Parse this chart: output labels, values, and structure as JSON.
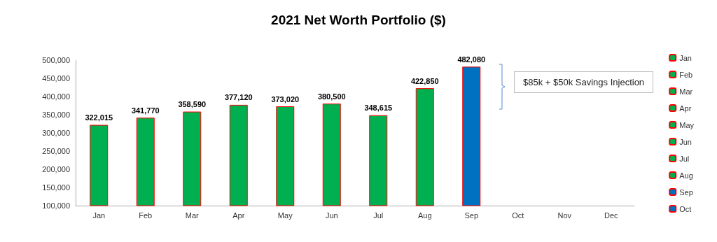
{
  "chart_data": {
    "type": "bar",
    "title": "2021 Net Worth Portfolio ($)",
    "categories": [
      "Jan",
      "Feb",
      "Mar",
      "Apr",
      "May",
      "Jun",
      "Jul",
      "Aug",
      "Sep",
      "Oct",
      "Nov",
      "Dec"
    ],
    "stacked": true,
    "series": [
      {
        "name": "Jan",
        "color": "#00b050",
        "values": [
          322015,
          null,
          null,
          null,
          null,
          null,
          null,
          null,
          null,
          null,
          null,
          null
        ],
        "value_labels": [
          "322,015",
          null,
          null,
          null,
          null,
          null,
          null,
          null,
          null,
          null,
          null,
          null
        ]
      },
      {
        "name": "Feb",
        "color": "#00b050",
        "values": [
          null,
          341770,
          null,
          null,
          null,
          null,
          null,
          null,
          null,
          null,
          null,
          null
        ],
        "value_labels": [
          null,
          "341,770",
          null,
          null,
          null,
          null,
          null,
          null,
          null,
          null,
          null,
          null
        ]
      },
      {
        "name": "Mar",
        "color": "#00b050",
        "values": [
          null,
          null,
          358590,
          null,
          null,
          null,
          null,
          null,
          null,
          null,
          null,
          null
        ],
        "value_labels": [
          null,
          null,
          "358,590",
          null,
          null,
          null,
          null,
          null,
          null,
          null,
          null,
          null
        ]
      },
      {
        "name": "Apr",
        "color": "#00b050",
        "values": [
          null,
          null,
          null,
          377120,
          null,
          null,
          null,
          null,
          null,
          null,
          null,
          null
        ],
        "value_labels": [
          null,
          null,
          null,
          "377,120",
          null,
          null,
          null,
          null,
          null,
          null,
          null,
          null
        ]
      },
      {
        "name": "May",
        "color": "#00b050",
        "values": [
          null,
          null,
          null,
          null,
          373020,
          null,
          null,
          null,
          null,
          null,
          null,
          null
        ],
        "value_labels": [
          null,
          null,
          null,
          null,
          "373,020",
          null,
          null,
          null,
          null,
          null,
          null,
          null
        ]
      },
      {
        "name": "Jun",
        "color": "#00b050",
        "values": [
          null,
          null,
          null,
          null,
          null,
          380500,
          null,
          null,
          null,
          null,
          null,
          null
        ],
        "value_labels": [
          null,
          null,
          null,
          null,
          null,
          "380,500",
          null,
          null,
          null,
          null,
          null,
          null
        ]
      },
      {
        "name": "Jul",
        "color": "#00b050",
        "values": [
          null,
          null,
          null,
          null,
          null,
          null,
          348615,
          null,
          null,
          null,
          null,
          null
        ],
        "value_labels": [
          null,
          null,
          null,
          null,
          null,
          null,
          "348,615",
          null,
          null,
          null,
          null,
          null
        ]
      },
      {
        "name": "Aug",
        "color": "#00b050",
        "values": [
          null,
          null,
          null,
          null,
          null,
          null,
          null,
          422850,
          null,
          null,
          null,
          null
        ],
        "value_labels": [
          null,
          null,
          null,
          null,
          null,
          null,
          null,
          "422,850",
          null,
          null,
          null,
          null
        ]
      },
      {
        "name": "Sep",
        "color": "#0070c0",
        "values": [
          null,
          null,
          null,
          null,
          null,
          null,
          null,
          null,
          482080,
          null,
          null,
          null
        ],
        "value_labels": [
          null,
          null,
          null,
          null,
          null,
          null,
          null,
          null,
          "482,080",
          null,
          null,
          null
        ]
      },
      {
        "name": "Oct",
        "color": "#0070c0",
        "values": [
          null,
          null,
          null,
          null,
          null,
          null,
          null,
          null,
          null,
          null,
          null,
          null
        ]
      }
    ],
    "ylim": [
      100000,
      500000
    ],
    "yticks": [
      {
        "value": 100000,
        "label": "100,000"
      },
      {
        "value": 150000,
        "label": "150,000"
      },
      {
        "value": 200000,
        "label": "200,000"
      },
      {
        "value": 250000,
        "label": "250,000"
      },
      {
        "value": 300000,
        "label": "300,000"
      },
      {
        "value": 350000,
        "label": "350,000"
      },
      {
        "value": 400000,
        "label": "400,000"
      },
      {
        "value": 450000,
        "label": "450,000"
      },
      {
        "value": 500000,
        "label": "500,000"
      }
    ],
    "grid": false,
    "legend": "right",
    "annotations": [
      "$85k + $50k Savings Injection"
    ]
  }
}
